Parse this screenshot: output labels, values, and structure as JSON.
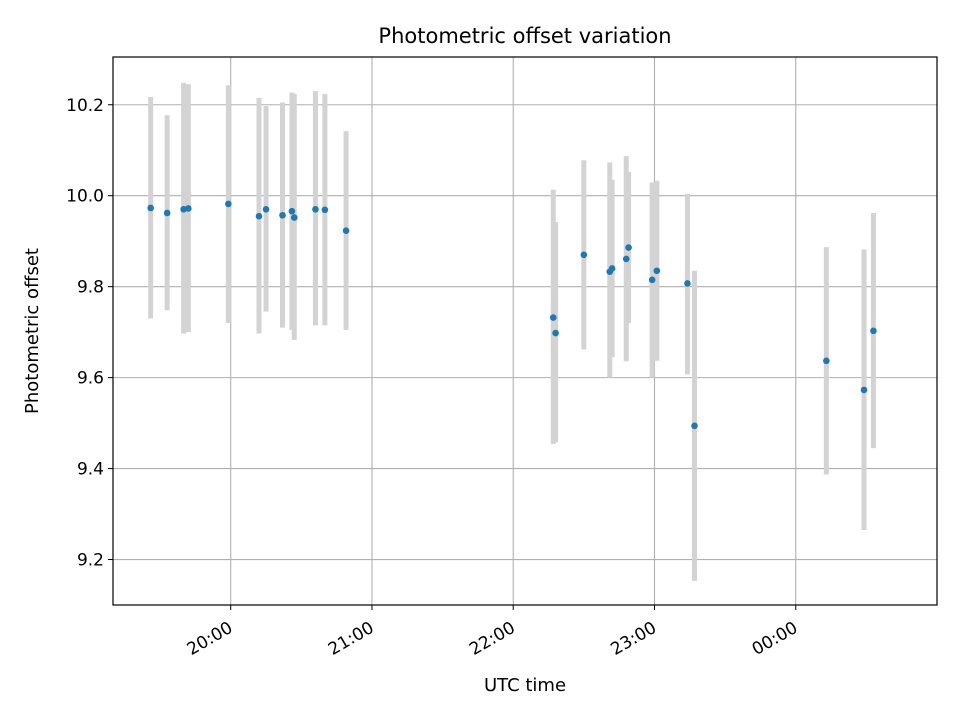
{
  "chart_data": {
    "type": "scatter",
    "title": "Photometric offset variation",
    "xlabel": "UTC time",
    "ylabel": "Photometric offset",
    "x_unit": "UTC datetime",
    "xlim": [
      "19:10",
      "01:00"
    ],
    "ylim": [
      9.1,
      10.305
    ],
    "grid": true,
    "x_ticks": [
      "20:00",
      "21:00",
      "22:00",
      "23:00",
      "00:00"
    ],
    "y_ticks": [
      "9.2",
      "9.4",
      "9.6",
      "9.8",
      "10.0",
      "10.2"
    ],
    "marker_color": "#1f77b4",
    "errorbar_color": "#d3d3d3",
    "points": [
      {
        "t": "19:26",
        "y": 9.973,
        "lo": 9.73,
        "hi": 10.217
      },
      {
        "t": "19:33",
        "y": 9.962,
        "lo": 9.748,
        "hi": 10.177
      },
      {
        "t": "19:40",
        "y": 9.97,
        "lo": 9.697,
        "hi": 10.248
      },
      {
        "t": "19:42",
        "y": 9.972,
        "lo": 9.7,
        "hi": 10.245
      },
      {
        "t": "19:59",
        "y": 9.982,
        "lo": 9.72,
        "hi": 10.243
      },
      {
        "t": "20:12",
        "y": 9.955,
        "lo": 9.697,
        "hi": 10.215
      },
      {
        "t": "20:15",
        "y": 9.97,
        "lo": 9.745,
        "hi": 10.197
      },
      {
        "t": "20:22",
        "y": 9.957,
        "lo": 9.71,
        "hi": 10.205
      },
      {
        "t": "20:26",
        "y": 9.966,
        "lo": 9.705,
        "hi": 10.227
      },
      {
        "t": "20:27",
        "y": 9.952,
        "lo": 9.683,
        "hi": 10.224
      },
      {
        "t": "20:36",
        "y": 9.97,
        "lo": 9.715,
        "hi": 10.23
      },
      {
        "t": "20:40",
        "y": 9.969,
        "lo": 9.715,
        "hi": 10.224
      },
      {
        "t": "20:49",
        "y": 9.923,
        "lo": 9.705,
        "hi": 10.142
      },
      {
        "t": "22:17",
        "y": 9.732,
        "lo": 9.454,
        "hi": 10.013
      },
      {
        "t": "22:18",
        "y": 9.698,
        "lo": 9.458,
        "hi": 9.942
      },
      {
        "t": "22:30",
        "y": 9.87,
        "lo": 9.662,
        "hi": 10.078
      },
      {
        "t": "22:41",
        "y": 9.833,
        "lo": 9.6,
        "hi": 10.073
      },
      {
        "t": "22:42",
        "y": 9.84,
        "lo": 9.645,
        "hi": 10.035
      },
      {
        "t": "22:48",
        "y": 9.861,
        "lo": 9.636,
        "hi": 10.087
      },
      {
        "t": "22:49",
        "y": 9.886,
        "lo": 9.72,
        "hi": 10.052
      },
      {
        "t": "22:59",
        "y": 9.815,
        "lo": 9.6,
        "hi": 10.029
      },
      {
        "t": "23:01",
        "y": 9.835,
        "lo": 9.637,
        "hi": 10.033
      },
      {
        "t": "23:14",
        "y": 9.807,
        "lo": 9.607,
        "hi": 10.004
      },
      {
        "t": "23:17",
        "y": 9.494,
        "lo": 9.153,
        "hi": 9.835
      },
      {
        "t": "00:13",
        "y": 9.637,
        "lo": 9.387,
        "hi": 9.887
      },
      {
        "t": "00:29",
        "y": 9.573,
        "lo": 9.265,
        "hi": 9.882
      },
      {
        "t": "00:33",
        "y": 9.703,
        "lo": 9.445,
        "hi": 9.962
      }
    ]
  }
}
